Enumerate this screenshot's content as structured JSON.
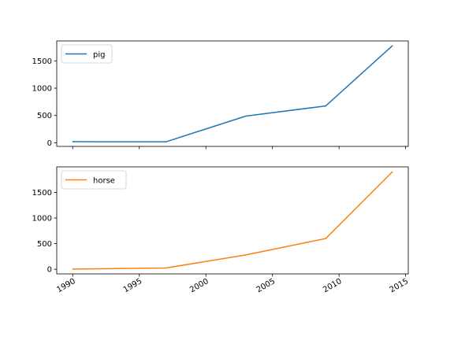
{
  "chart_data": [
    {
      "type": "line",
      "x": [
        1990,
        1997,
        2003,
        2009,
        2014
      ],
      "series": [
        {
          "name": "pig",
          "values": [
            20,
            18,
            489,
            675,
            1776
          ],
          "color": "#1f77b4"
        }
      ],
      "xlim": [
        1988.8,
        2015.2
      ],
      "ylim": [
        -66,
        1865
      ],
      "yticks": [
        0,
        500,
        1000,
        1500
      ],
      "xticks": [
        1990,
        1995,
        2000,
        2005,
        2010,
        2015
      ],
      "legend": "upper-left",
      "grid": false,
      "x_tick_labels_shown": false
    },
    {
      "type": "line",
      "x": [
        1990,
        1997,
        2003,
        2009,
        2014
      ],
      "series": [
        {
          "name": "horse",
          "values": [
            4,
            25,
            281,
            600,
            1900
          ],
          "color": "#ff7f0e"
        }
      ],
      "xlim": [
        1988.8,
        2015.2
      ],
      "ylim": [
        -90,
        1998
      ],
      "yticks": [
        0,
        500,
        1000,
        1500
      ],
      "xticks": [
        1990,
        1995,
        2000,
        2005,
        2010,
        2015
      ],
      "legend": "upper-left",
      "grid": false,
      "x_tick_labels_shown": true,
      "x_tick_rotation_deg": 30
    }
  ]
}
